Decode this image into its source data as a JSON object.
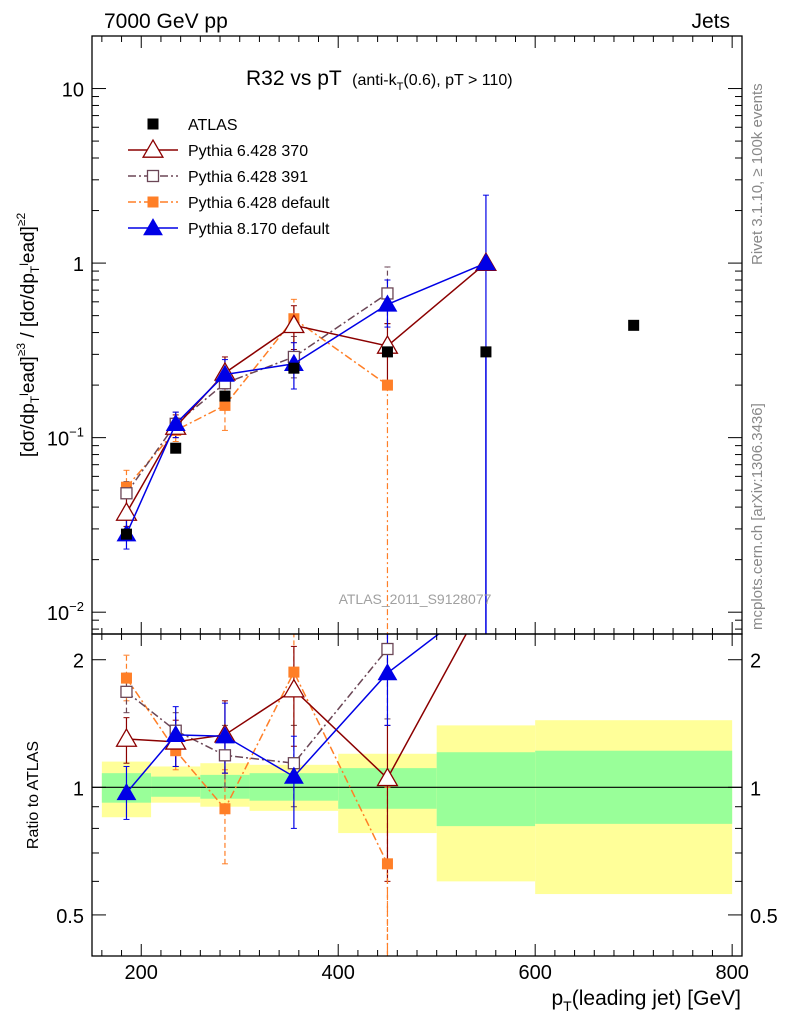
{
  "header": {
    "left": "7000 GeV pp",
    "right": "Jets",
    "title_main": "R32 vs pT",
    "title_paren": "(anti-k",
    "title_paren_sub": "T",
    "title_paren_rest": "(0.6), pT > 110)"
  },
  "side_labels": {
    "rivet": "Rivet 3.1.10, ≥ 100k events",
    "mcplots": "mcplots.cern.ch [arXiv:1306.3436]"
  },
  "watermark": "ATLAS_2011_S9128077",
  "ratio_ylabel": "Ratio to ATLAS",
  "chart_data": {
    "type": "scatter",
    "x_ticks": [
      200,
      400,
      600,
      800
    ],
    "y_ticks_main": [
      {
        "value": 0.01,
        "base": "10",
        "exp": "−2"
      },
      {
        "value": 0.1,
        "base": "10",
        "exp": "−1"
      },
      {
        "value": 1,
        "base": "1",
        "exp": ""
      },
      {
        "value": 10,
        "base": "10",
        "exp": ""
      }
    ],
    "y_ticks_ratio": [
      {
        "value": 0.5,
        "label": "0.5"
      },
      {
        "value": 1,
        "label": "1"
      },
      {
        "value": 2,
        "label": "2"
      }
    ],
    "xlim": [
      150,
      810
    ],
    "ylim_main": [
      0.0075,
      20
    ],
    "ylim_ratio": [
      0.4,
      2.3
    ],
    "log_y": true,
    "legend_position": "top-left",
    "data": {
      "name": "ATLAS",
      "color": "#000000",
      "x": [
        185,
        235,
        285,
        355,
        450,
        550,
        700
      ],
      "y": [
        0.028,
        0.087,
        0.173,
        0.25,
        0.31,
        0.31,
        0.44
      ]
    },
    "bands": [
      {
        "x0": 160,
        "x1": 210,
        "stat_lo": 0.92,
        "stat_hi": 1.08,
        "tot_lo": 0.85,
        "tot_hi": 1.15
      },
      {
        "x0": 210,
        "x1": 260,
        "stat_lo": 0.95,
        "stat_hi": 1.06,
        "tot_lo": 0.92,
        "tot_hi": 1.12
      },
      {
        "x0": 260,
        "x1": 310,
        "stat_lo": 0.94,
        "stat_hi": 1.07,
        "tot_lo": 0.9,
        "tot_hi": 1.14
      },
      {
        "x0": 310,
        "x1": 400,
        "stat_lo": 0.93,
        "stat_hi": 1.08,
        "tot_lo": 0.88,
        "tot_hi": 1.13
      },
      {
        "x0": 400,
        "x1": 500,
        "stat_lo": 0.89,
        "stat_hi": 1.11,
        "tot_lo": 0.78,
        "tot_hi": 1.2
      },
      {
        "x0": 500,
        "x1": 600,
        "stat_lo": 0.81,
        "stat_hi": 1.21,
        "tot_lo": 0.6,
        "tot_hi": 1.4
      },
      {
        "x0": 600,
        "x1": 800,
        "stat_lo": 0.82,
        "stat_hi": 1.22,
        "tot_lo": 0.56,
        "tot_hi": 1.44
      }
    ],
    "series": [
      {
        "name": "Pythia 6.428 370",
        "color": "#8b0000",
        "dash": "",
        "marker": "triangle-open",
        "x": [
          185,
          235,
          285,
          355,
          450,
          550
        ],
        "y": [
          0.037,
          0.115,
          0.235,
          0.44,
          0.335,
          1.0
        ],
        "ratio": [
          1.3,
          1.28,
          1.33,
          1.7,
          1.05
        ]
      },
      {
        "name": "Pythia 6.428 391",
        "color": "#6b4656",
        "dash": "8,3,2,3",
        "marker": "square-open",
        "x": [
          185,
          235,
          285,
          355,
          450
        ],
        "y": [
          0.048,
          0.12,
          0.205,
          0.29,
          0.67
        ],
        "ratio": [
          1.68,
          1.36,
          1.19,
          1.14,
          2.12
        ]
      },
      {
        "name": "Pythia 6.428 default",
        "color": "#ff7f27",
        "dash": "8,3,2,3",
        "marker": "square-filled",
        "x": [
          185,
          235,
          285,
          355,
          450
        ],
        "y": [
          0.052,
          0.11,
          0.153,
          0.48,
          0.2
        ],
        "ratio": [
          1.81,
          1.22,
          0.89,
          1.87,
          0.66
        ]
      },
      {
        "name": "Pythia 8.170 default",
        "color": "#0000e6",
        "dash": "",
        "marker": "triangle-filled",
        "x": [
          185,
          235,
          285,
          355,
          450,
          550
        ],
        "y": [
          0.028,
          0.12,
          0.23,
          0.265,
          0.58,
          1.0
        ],
        "ratio": [
          0.97,
          1.33,
          1.32,
          1.06,
          1.86
        ]
      }
    ]
  }
}
